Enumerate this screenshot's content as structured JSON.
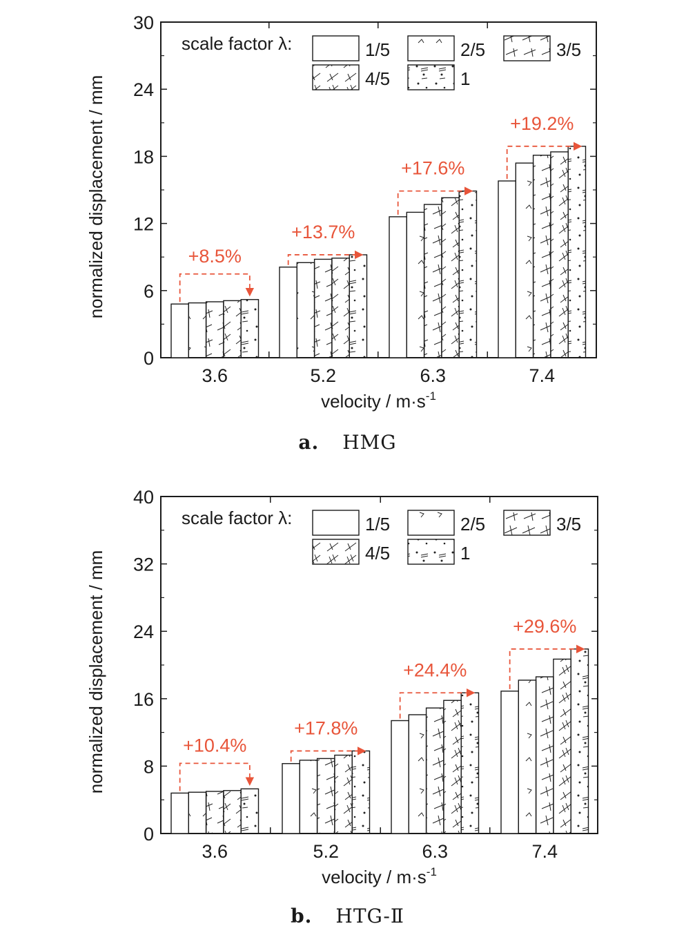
{
  "chart_data": [
    {
      "type": "bar",
      "categories": [
        "3.6",
        "5.2",
        "6.3",
        "7.4"
      ],
      "ylim": [
        0,
        30
      ],
      "yticks": [
        0,
        6,
        12,
        18,
        24,
        30
      ],
      "ylabel": "normalized displacement / mm",
      "xlabel": "velocity / m·s",
      "xlabel_exp": "-1",
      "legend_title": "scale factor λ:",
      "legend_position": "top-left",
      "series": [
        {
          "name": "1/5",
          "pattern": "plain",
          "values": [
            4.8,
            8.1,
            12.6,
            15.8
          ]
        },
        {
          "name": "2/5",
          "pattern": "ticks",
          "values": [
            4.9,
            8.5,
            13.0,
            17.4
          ]
        },
        {
          "name": "3/5",
          "pattern": "crosses",
          "values": [
            5.0,
            8.8,
            13.7,
            18.1
          ]
        },
        {
          "name": "4/5",
          "pattern": "double-crosses",
          "values": [
            5.1,
            8.9,
            14.3,
            18.4
          ]
        },
        {
          "name": "1",
          "pattern": "dots",
          "values": [
            5.2,
            9.2,
            14.9,
            18.9
          ]
        }
      ],
      "annotations": [
        "+8.5%",
        "+13.7%",
        "+17.6%",
        "+19.2%"
      ],
      "annotation_color": "#e8553a",
      "caption_label": "a.",
      "caption_text": "HMG"
    },
    {
      "type": "bar",
      "categories": [
        "3.6",
        "5.2",
        "6.3",
        "7.4"
      ],
      "ylim": [
        0,
        40
      ],
      "yticks": [
        0,
        8,
        16,
        24,
        32,
        40
      ],
      "ylabel": "normalized displacement / mm",
      "xlabel": "velocity / m·s",
      "xlabel_exp": "-1",
      "legend_title": "scale factor λ:",
      "legend_position": "top-left",
      "series": [
        {
          "name": "1/5",
          "pattern": "plain",
          "values": [
            4.8,
            8.3,
            13.4,
            16.9
          ]
        },
        {
          "name": "2/5",
          "pattern": "ticks",
          "values": [
            4.9,
            8.7,
            14.1,
            18.2
          ]
        },
        {
          "name": "3/5",
          "pattern": "crosses",
          "values": [
            5.0,
            8.9,
            14.9,
            18.6
          ]
        },
        {
          "name": "4/5",
          "pattern": "double-crosses",
          "values": [
            5.1,
            9.3,
            15.8,
            20.7
          ]
        },
        {
          "name": "1",
          "pattern": "dots",
          "values": [
            5.3,
            9.8,
            16.7,
            21.9
          ]
        }
      ],
      "annotations": [
        "+10.4%",
        "+17.8%",
        "+24.4%",
        "+29.6%"
      ],
      "annotation_color": "#e8553a",
      "caption_label": "b.",
      "caption_text": "HTG-Ⅱ"
    }
  ]
}
